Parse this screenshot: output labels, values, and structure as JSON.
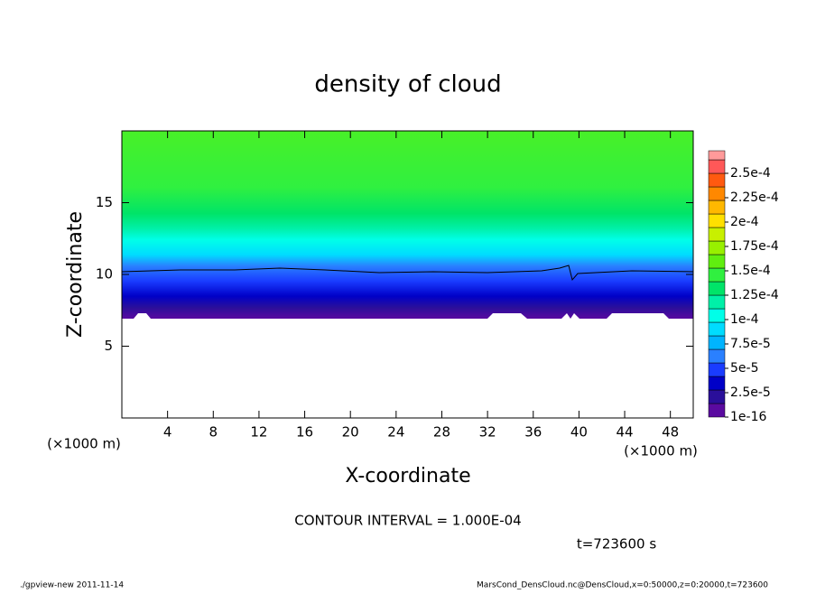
{
  "chart_data": {
    "type": "contour",
    "title": "density of cloud",
    "x_label": "X-coordinate",
    "y_label": "Z-coordinate",
    "x_unit": "(×1000 m)",
    "y_unit": "(×1000 m)",
    "xlim": [
      0,
      50
    ],
    "xticks": [
      4,
      8,
      12,
      16,
      20,
      24,
      28,
      32,
      36,
      40,
      44,
      48
    ],
    "ylim": [
      0,
      20
    ],
    "yticks": [
      5,
      10,
      15
    ],
    "levels": [
      {
        "value": 1e-16,
        "label": "1e-16"
      },
      {
        "value": 2.5e-05,
        "label": "2.5e-5"
      },
      {
        "value": 5e-05,
        "label": "5e-5"
      },
      {
        "value": 7.5e-05,
        "label": "7.5e-5"
      },
      {
        "value": 0.0001,
        "label": "1e-4"
      },
      {
        "value": 0.000125,
        "label": "1.25e-4"
      },
      {
        "value": 0.00015,
        "label": "1.5e-4"
      },
      {
        "value": 0.000175,
        "label": "1.75e-4"
      },
      {
        "value": 0.0002,
        "label": "2e-4"
      },
      {
        "value": 0.000225,
        "label": "2.25e-4"
      },
      {
        "value": 0.00025,
        "label": "2.5e-4"
      }
    ],
    "colors": [
      "#5a0aa0",
      "#2a0f9a",
      "#0000c8",
      "#1a3cff",
      "#2a80ff",
      "#00b4ff",
      "#00dcff",
      "#00ffe8",
      "#00f0a8",
      "#00e468",
      "#30f040",
      "#60ee10",
      "#98f000",
      "#c8f000",
      "#ffe000",
      "#ffb800",
      "#ff8800",
      "#ff5a10",
      "#ff5858",
      "#ff9a9a"
    ],
    "contour_interval": "CONTOUR INTERVAL = 1.000E-04",
    "time": "t=723600 s",
    "footer_left": "./gpview-new  2011-11-14",
    "footer_right": "MarsCond_DensCloud.nc@DensCloud,x=0:50000,z=0:20000,t=723600"
  }
}
